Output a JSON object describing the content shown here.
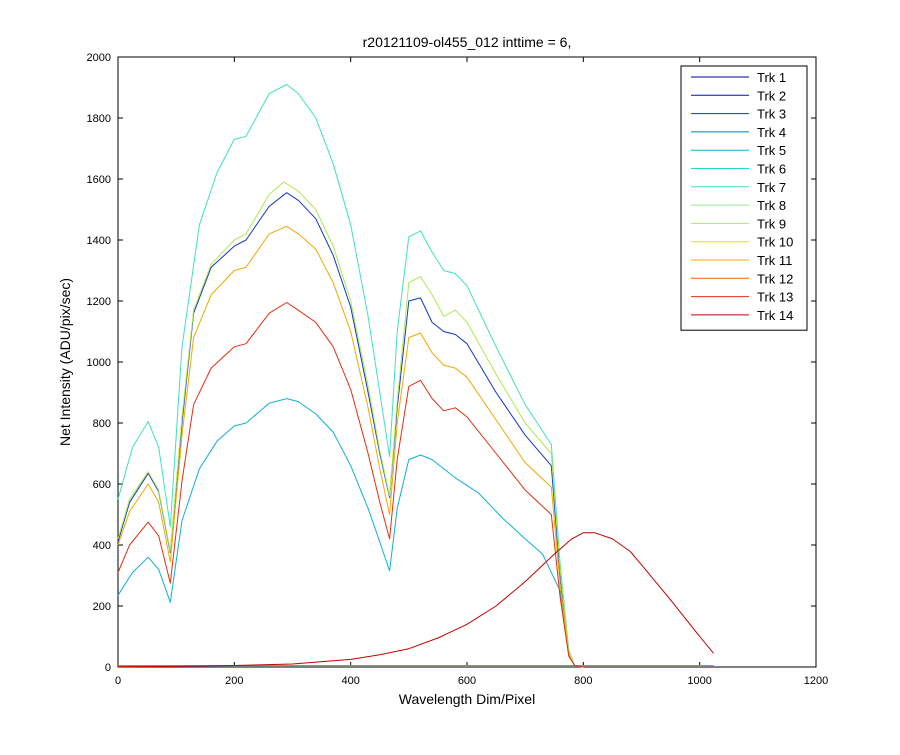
{
  "chart_data": {
    "type": "line",
    "title": "r20121109-ol455_012 inttime = 6,",
    "xlabel": "Wavelength Dim/Pixel",
    "ylabel": "Net Intensity (ADU/pix/sec)",
    "xlim": [
      0,
      1200
    ],
    "ylim": [
      0,
      2000
    ],
    "xticks": [
      0,
      200,
      400,
      600,
      800,
      1000,
      1200
    ],
    "yticks": [
      0,
      200,
      400,
      600,
      800,
      1000,
      1200,
      1400,
      1600,
      1800,
      2000
    ],
    "grid": false,
    "legend_position": "top-right",
    "series": [
      {
        "name": "Trk 1",
        "color": "#000090",
        "x": [
          0,
          1024
        ],
        "y": [
          2,
          2
        ]
      },
      {
        "name": "Trk 2",
        "color": "#0010c0",
        "x": [
          0,
          1024
        ],
        "y": [
          2,
          2
        ]
      },
      {
        "name": "Trk 3",
        "color": "#1038c0",
        "x": [
          0,
          20,
          52,
          70,
          90,
          110,
          130,
          160,
          200,
          220,
          260,
          290,
          310,
          340,
          370,
          400,
          430,
          450,
          467,
          480,
          500,
          520,
          540,
          560,
          580,
          600,
          650,
          700,
          745,
          760,
          775,
          785,
          800
        ],
        "y": [
          410,
          540,
          635,
          575,
          375,
          800,
          1160,
          1310,
          1380,
          1400,
          1510,
          1555,
          1530,
          1470,
          1350,
          1180,
          900,
          700,
          555,
          850,
          1200,
          1210,
          1130,
          1100,
          1090,
          1060,
          900,
          760,
          660,
          300,
          50,
          5,
          0
        ]
      },
      {
        "name": "Trk 4",
        "color": "#0080b0",
        "x": [
          0,
          1024
        ],
        "y": [
          3,
          3
        ]
      },
      {
        "name": "Trk 5",
        "color": "#10b0d0",
        "x": [
          0,
          25,
          52,
          70,
          90,
          110,
          140,
          170,
          200,
          220,
          260,
          290,
          310,
          340,
          370,
          400,
          430,
          450,
          467,
          480,
          500,
          520,
          540,
          580,
          620,
          660,
          700,
          730,
          760,
          775,
          785,
          800
        ],
        "y": [
          235,
          310,
          360,
          320,
          212,
          480,
          650,
          740,
          790,
          800,
          865,
          880,
          870,
          830,
          770,
          660,
          520,
          410,
          315,
          520,
          680,
          695,
          680,
          620,
          570,
          490,
          420,
          370,
          250,
          40,
          5,
          0
        ]
      },
      {
        "name": "Trk 6",
        "color": "#20d8c0",
        "x": [
          0,
          1024
        ],
        "y": [
          4,
          4
        ]
      },
      {
        "name": "Trk 7",
        "color": "#40e0c0",
        "x": [
          0,
          25,
          52,
          70,
          90,
          110,
          140,
          170,
          200,
          220,
          260,
          290,
          310,
          340,
          370,
          400,
          430,
          450,
          467,
          480,
          500,
          520,
          540,
          560,
          580,
          600,
          650,
          700,
          745,
          760,
          775,
          785,
          800
        ],
        "y": [
          550,
          720,
          805,
          720,
          460,
          1050,
          1450,
          1620,
          1730,
          1740,
          1880,
          1910,
          1880,
          1800,
          1650,
          1450,
          1150,
          900,
          690,
          1100,
          1410,
          1430,
          1360,
          1300,
          1290,
          1250,
          1050,
          860,
          730,
          340,
          55,
          5,
          0
        ]
      },
      {
        "name": "Trk 8",
        "color": "#90e890",
        "x": [
          0,
          1024
        ],
        "y": [
          3,
          3
        ]
      },
      {
        "name": "Trk 9",
        "color": "#b0e850",
        "x": [
          0,
          20,
          52,
          70,
          90,
          110,
          130,
          160,
          200,
          220,
          260,
          285,
          310,
          340,
          370,
          400,
          430,
          450,
          467,
          480,
          500,
          520,
          540,
          560,
          580,
          600,
          650,
          700,
          745,
          760,
          775,
          785,
          800
        ],
        "y": [
          420,
          550,
          640,
          580,
          380,
          820,
          1170,
          1320,
          1400,
          1420,
          1550,
          1590,
          1560,
          1500,
          1380,
          1200,
          920,
          710,
          560,
          870,
          1260,
          1280,
          1220,
          1150,
          1170,
          1130,
          960,
          800,
          700,
          320,
          50,
          5,
          0
        ]
      },
      {
        "name": "Trk 10",
        "color": "#e8e000",
        "x": [
          0,
          1024
        ],
        "y": [
          5,
          5
        ]
      },
      {
        "name": "Trk 11",
        "color": "#f0a800",
        "x": [
          0,
          20,
          52,
          70,
          90,
          110,
          130,
          160,
          200,
          220,
          260,
          290,
          310,
          340,
          370,
          400,
          430,
          450,
          467,
          480,
          500,
          520,
          540,
          560,
          580,
          600,
          650,
          700,
          745,
          760,
          775,
          785,
          800
        ],
        "y": [
          400,
          510,
          600,
          540,
          345,
          760,
          1080,
          1220,
          1300,
          1310,
          1420,
          1445,
          1420,
          1370,
          1260,
          1100,
          850,
          650,
          500,
          800,
          1080,
          1095,
          1030,
          990,
          980,
          950,
          810,
          670,
          590,
          270,
          40,
          5,
          0
        ]
      },
      {
        "name": "Trk 12",
        "color": "#f06000",
        "x": [
          0,
          1024
        ],
        "y": [
          4,
          4
        ]
      },
      {
        "name": "Trk 13",
        "color": "#e03010",
        "x": [
          0,
          20,
          52,
          70,
          90,
          110,
          130,
          160,
          200,
          220,
          260,
          290,
          310,
          340,
          370,
          400,
          430,
          450,
          467,
          480,
          500,
          520,
          540,
          560,
          580,
          600,
          650,
          700,
          745,
          760,
          775,
          785,
          800
        ],
        "y": [
          310,
          400,
          475,
          430,
          275,
          610,
          860,
          980,
          1050,
          1060,
          1160,
          1195,
          1170,
          1130,
          1050,
          910,
          700,
          540,
          420,
          680,
          920,
          940,
          880,
          840,
          850,
          820,
          700,
          580,
          500,
          230,
          35,
          5,
          0
        ]
      },
      {
        "name": "Trk 14",
        "color": "#c00000",
        "x": [
          0,
          100,
          200,
          300,
          400,
          450,
          500,
          550,
          600,
          650,
          700,
          750,
          780,
          800,
          820,
          850,
          880,
          900,
          950,
          1000,
          1024
        ],
        "y": [
          1,
          2,
          5,
          10,
          25,
          40,
          60,
          95,
          140,
          200,
          280,
          370,
          420,
          440,
          440,
          420,
          380,
          335,
          220,
          100,
          45
        ]
      }
    ]
  }
}
